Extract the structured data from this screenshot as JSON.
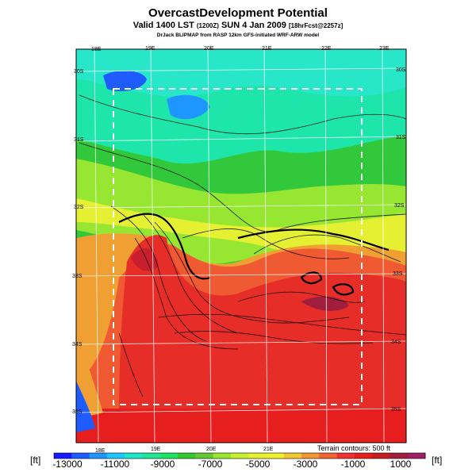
{
  "title": "OvercastDevelopment Potential",
  "subtitle": {
    "valid": "Valid 1400 LST",
    "time_small": "(1200Z)",
    "date": "SUN 4 Jan 2009",
    "forecast_small": "[18hrFcst@2257z]"
  },
  "credit": "DrJack BLIPMAP from RASP 12km GFS-initiated WRF-ARW model",
  "colorbar": {
    "unit_left": "[ft]",
    "unit_right": "[ft]",
    "ticks": [
      "-13000",
      "-11000",
      "-9000",
      "-7000",
      "-5000",
      "-3000",
      "-1000",
      "1000"
    ],
    "colors": [
      "#1a1aff",
      "#1e5cff",
      "#1e96ff",
      "#1ec8ff",
      "#1ee6c8",
      "#1ee696",
      "#1ee664",
      "#32c832",
      "#64c832",
      "#96e632",
      "#c8f032",
      "#e6f032",
      "#f0f032",
      "#f0c832",
      "#f09632",
      "#f06432",
      "#f03232",
      "#e61e1e",
      "#c81e1e",
      "#a01e3c",
      "#a01e64"
    ]
  },
  "terrain_note": "Terrain contours: 500 ft",
  "graticule": {
    "top_lon_labels": [
      "18E",
      "19E",
      "20E",
      "21E",
      "22E",
      "23E"
    ],
    "bottom_lon_labels": [
      "18E",
      "19E",
      "20E",
      "21E"
    ],
    "left_lat_labels": [
      "30S",
      "31S",
      "32S",
      "33S",
      "34S",
      "35S"
    ],
    "right_lat_labels": [
      "30S",
      "31S",
      "32S",
      "33S",
      "34S",
      "35S"
    ]
  }
}
